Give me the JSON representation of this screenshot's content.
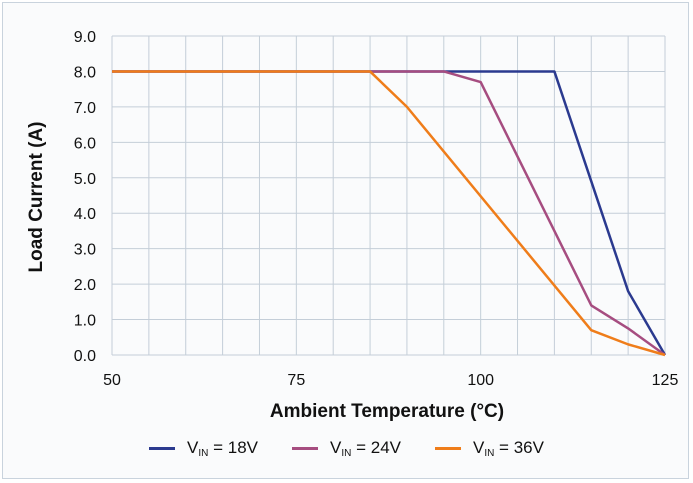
{
  "chart_data": {
    "type": "line",
    "xlabel": "Ambient Temperature (°C)",
    "ylabel": "Load Current (A)",
    "xlim": [
      50,
      125
    ],
    "ylim": [
      0,
      9
    ],
    "xticks": [
      50,
      75,
      100,
      125
    ],
    "xtick_labels": [
      "50",
      "75",
      "100",
      "125"
    ],
    "yticks": [
      0,
      1,
      2,
      3,
      4,
      5,
      6,
      7,
      8,
      9
    ],
    "ytick_labels": [
      "0.0",
      "1.0",
      "2.0",
      "3.0",
      "4.0",
      "5.0",
      "6.0",
      "7.0",
      "8.0",
      "9.0"
    ],
    "grid": true,
    "legend_position": "bottom",
    "series": [
      {
        "name": "VIN = 18V",
        "label_main": "V",
        "label_sub": "IN",
        "label_rest": " = 18V",
        "color": "#2b3a8f",
        "x": [
          50,
          110,
          115,
          120,
          125
        ],
        "y": [
          8.0,
          8.0,
          4.9,
          1.8,
          0.0
        ]
      },
      {
        "name": "VIN = 24V",
        "label_main": "V",
        "label_sub": "IN",
        "label_rest": " = 24V",
        "color": "#a64d80",
        "x": [
          50,
          95,
          100,
          115,
          120,
          125
        ],
        "y": [
          8.0,
          8.0,
          7.7,
          1.4,
          0.75,
          0.0
        ]
      },
      {
        "name": "VIN = 36V",
        "label_main": "V",
        "label_sub": "IN",
        "label_rest": " = 36V",
        "color": "#ef7d1a",
        "x": [
          50,
          85,
          90,
          115,
          120,
          125
        ],
        "y": [
          8.0,
          8.0,
          7.0,
          0.7,
          0.3,
          0.0
        ]
      }
    ]
  }
}
